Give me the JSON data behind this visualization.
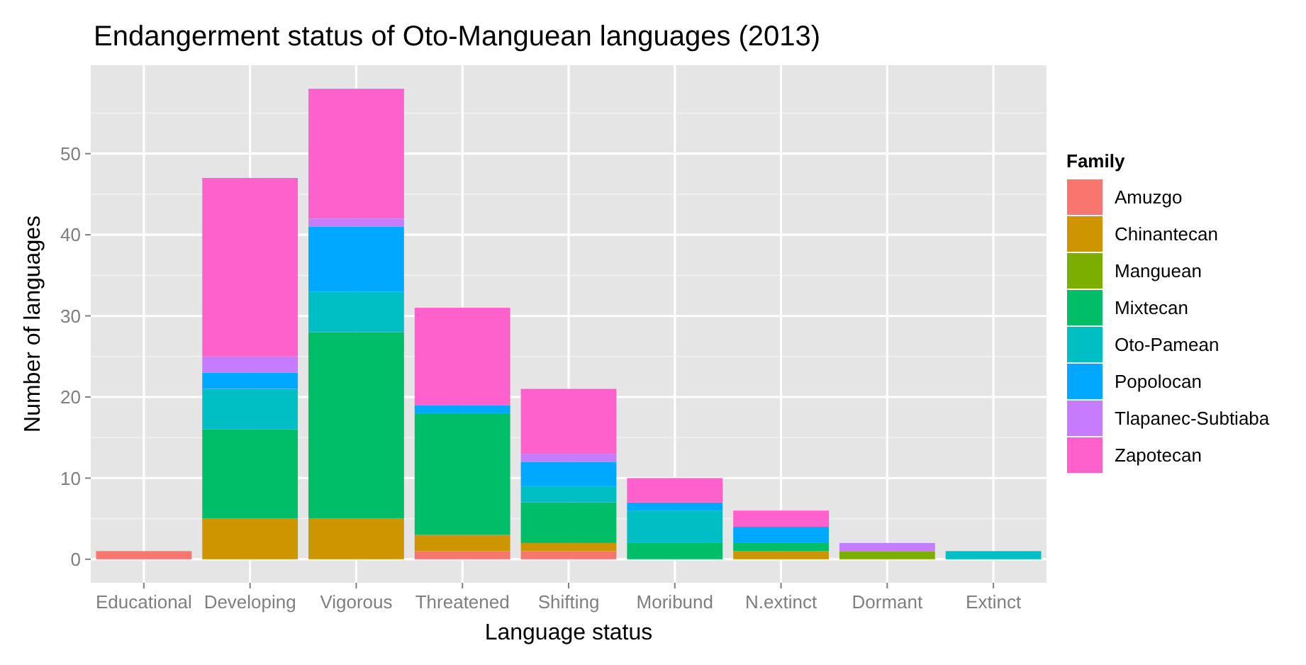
{
  "chart_data": {
    "type": "bar",
    "stacked": true,
    "title": "Endangerment status of Oto-Manguean languages (2013)",
    "xlabel": "Language status",
    "ylabel": "Number of languages",
    "legend_title": "Family",
    "legend": "right",
    "grid": true,
    "categories": [
      "Educational",
      "Developing",
      "Vigorous",
      "Threatened",
      "Shifting",
      "Moribund",
      "N.extinct",
      "Dormant",
      "Extinct"
    ],
    "ylim": [
      -2.9,
      60.9
    ],
    "yticks": [
      0,
      10,
      20,
      30,
      40,
      50
    ],
    "series": [
      {
        "name": "Amuzgo",
        "color": "#f8766d",
        "values": [
          1,
          0,
          0,
          1,
          1,
          0,
          0,
          0,
          0
        ]
      },
      {
        "name": "Chinantecan",
        "color": "#cd9600",
        "values": [
          0,
          5,
          5,
          2,
          1,
          0,
          1,
          0,
          0
        ]
      },
      {
        "name": "Manguean",
        "color": "#7cae00",
        "values": [
          0,
          0,
          0,
          0,
          0,
          0,
          0,
          1,
          0
        ]
      },
      {
        "name": "Mixtecan",
        "color": "#00be67",
        "values": [
          0,
          11,
          23,
          15,
          5,
          2,
          1,
          0,
          0
        ]
      },
      {
        "name": "Oto-Pamean",
        "color": "#00bfc4",
        "values": [
          0,
          5,
          5,
          0,
          2,
          4,
          0,
          0,
          1
        ]
      },
      {
        "name": "Popolocan",
        "color": "#00a9ff",
        "values": [
          0,
          2,
          8,
          1,
          3,
          1,
          2,
          0,
          0
        ]
      },
      {
        "name": "Tlapanec-Subtiaba",
        "color": "#c77cff",
        "values": [
          0,
          2,
          1,
          0,
          1,
          0,
          0,
          1,
          0
        ]
      },
      {
        "name": "Zapotecan",
        "color": "#ff61cc",
        "values": [
          0,
          22,
          16,
          12,
          8,
          3,
          2,
          0,
          0
        ]
      }
    ]
  }
}
